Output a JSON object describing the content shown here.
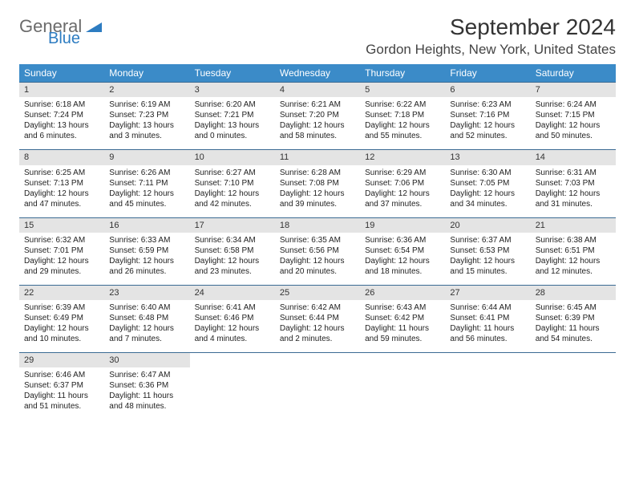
{
  "logo": {
    "text_general": "General",
    "text_blue": "Blue"
  },
  "header": {
    "month_title": "September 2024",
    "location": "Gordon Heights, New York, United States"
  },
  "colors": {
    "header_bg": "#3b8bc8",
    "header_text": "#ffffff",
    "daynum_bg": "#e4e4e4",
    "row_border": "#3b6b93",
    "logo_gray": "#6b6b6b",
    "logo_blue": "#2d7cc1"
  },
  "weekdays": [
    "Sunday",
    "Monday",
    "Tuesday",
    "Wednesday",
    "Thursday",
    "Friday",
    "Saturday"
  ],
  "weeks": [
    [
      {
        "n": "1",
        "sr": "Sunrise: 6:18 AM",
        "ss": "Sunset: 7:24 PM",
        "dl": "Daylight: 13 hours and 6 minutes."
      },
      {
        "n": "2",
        "sr": "Sunrise: 6:19 AM",
        "ss": "Sunset: 7:23 PM",
        "dl": "Daylight: 13 hours and 3 minutes."
      },
      {
        "n": "3",
        "sr": "Sunrise: 6:20 AM",
        "ss": "Sunset: 7:21 PM",
        "dl": "Daylight: 13 hours and 0 minutes."
      },
      {
        "n": "4",
        "sr": "Sunrise: 6:21 AM",
        "ss": "Sunset: 7:20 PM",
        "dl": "Daylight: 12 hours and 58 minutes."
      },
      {
        "n": "5",
        "sr": "Sunrise: 6:22 AM",
        "ss": "Sunset: 7:18 PM",
        "dl": "Daylight: 12 hours and 55 minutes."
      },
      {
        "n": "6",
        "sr": "Sunrise: 6:23 AM",
        "ss": "Sunset: 7:16 PM",
        "dl": "Daylight: 12 hours and 52 minutes."
      },
      {
        "n": "7",
        "sr": "Sunrise: 6:24 AM",
        "ss": "Sunset: 7:15 PM",
        "dl": "Daylight: 12 hours and 50 minutes."
      }
    ],
    [
      {
        "n": "8",
        "sr": "Sunrise: 6:25 AM",
        "ss": "Sunset: 7:13 PM",
        "dl": "Daylight: 12 hours and 47 minutes."
      },
      {
        "n": "9",
        "sr": "Sunrise: 6:26 AM",
        "ss": "Sunset: 7:11 PM",
        "dl": "Daylight: 12 hours and 45 minutes."
      },
      {
        "n": "10",
        "sr": "Sunrise: 6:27 AM",
        "ss": "Sunset: 7:10 PM",
        "dl": "Daylight: 12 hours and 42 minutes."
      },
      {
        "n": "11",
        "sr": "Sunrise: 6:28 AM",
        "ss": "Sunset: 7:08 PM",
        "dl": "Daylight: 12 hours and 39 minutes."
      },
      {
        "n": "12",
        "sr": "Sunrise: 6:29 AM",
        "ss": "Sunset: 7:06 PM",
        "dl": "Daylight: 12 hours and 37 minutes."
      },
      {
        "n": "13",
        "sr": "Sunrise: 6:30 AM",
        "ss": "Sunset: 7:05 PM",
        "dl": "Daylight: 12 hours and 34 minutes."
      },
      {
        "n": "14",
        "sr": "Sunrise: 6:31 AM",
        "ss": "Sunset: 7:03 PM",
        "dl": "Daylight: 12 hours and 31 minutes."
      }
    ],
    [
      {
        "n": "15",
        "sr": "Sunrise: 6:32 AM",
        "ss": "Sunset: 7:01 PM",
        "dl": "Daylight: 12 hours and 29 minutes."
      },
      {
        "n": "16",
        "sr": "Sunrise: 6:33 AM",
        "ss": "Sunset: 6:59 PM",
        "dl": "Daylight: 12 hours and 26 minutes."
      },
      {
        "n": "17",
        "sr": "Sunrise: 6:34 AM",
        "ss": "Sunset: 6:58 PM",
        "dl": "Daylight: 12 hours and 23 minutes."
      },
      {
        "n": "18",
        "sr": "Sunrise: 6:35 AM",
        "ss": "Sunset: 6:56 PM",
        "dl": "Daylight: 12 hours and 20 minutes."
      },
      {
        "n": "19",
        "sr": "Sunrise: 6:36 AM",
        "ss": "Sunset: 6:54 PM",
        "dl": "Daylight: 12 hours and 18 minutes."
      },
      {
        "n": "20",
        "sr": "Sunrise: 6:37 AM",
        "ss": "Sunset: 6:53 PM",
        "dl": "Daylight: 12 hours and 15 minutes."
      },
      {
        "n": "21",
        "sr": "Sunrise: 6:38 AM",
        "ss": "Sunset: 6:51 PM",
        "dl": "Daylight: 12 hours and 12 minutes."
      }
    ],
    [
      {
        "n": "22",
        "sr": "Sunrise: 6:39 AM",
        "ss": "Sunset: 6:49 PM",
        "dl": "Daylight: 12 hours and 10 minutes."
      },
      {
        "n": "23",
        "sr": "Sunrise: 6:40 AM",
        "ss": "Sunset: 6:48 PM",
        "dl": "Daylight: 12 hours and 7 minutes."
      },
      {
        "n": "24",
        "sr": "Sunrise: 6:41 AM",
        "ss": "Sunset: 6:46 PM",
        "dl": "Daylight: 12 hours and 4 minutes."
      },
      {
        "n": "25",
        "sr": "Sunrise: 6:42 AM",
        "ss": "Sunset: 6:44 PM",
        "dl": "Daylight: 12 hours and 2 minutes."
      },
      {
        "n": "26",
        "sr": "Sunrise: 6:43 AM",
        "ss": "Sunset: 6:42 PM",
        "dl": "Daylight: 11 hours and 59 minutes."
      },
      {
        "n": "27",
        "sr": "Sunrise: 6:44 AM",
        "ss": "Sunset: 6:41 PM",
        "dl": "Daylight: 11 hours and 56 minutes."
      },
      {
        "n": "28",
        "sr": "Sunrise: 6:45 AM",
        "ss": "Sunset: 6:39 PM",
        "dl": "Daylight: 11 hours and 54 minutes."
      }
    ],
    [
      {
        "n": "29",
        "sr": "Sunrise: 6:46 AM",
        "ss": "Sunset: 6:37 PM",
        "dl": "Daylight: 11 hours and 51 minutes."
      },
      {
        "n": "30",
        "sr": "Sunrise: 6:47 AM",
        "ss": "Sunset: 6:36 PM",
        "dl": "Daylight: 11 hours and 48 minutes."
      },
      null,
      null,
      null,
      null,
      null
    ]
  ]
}
